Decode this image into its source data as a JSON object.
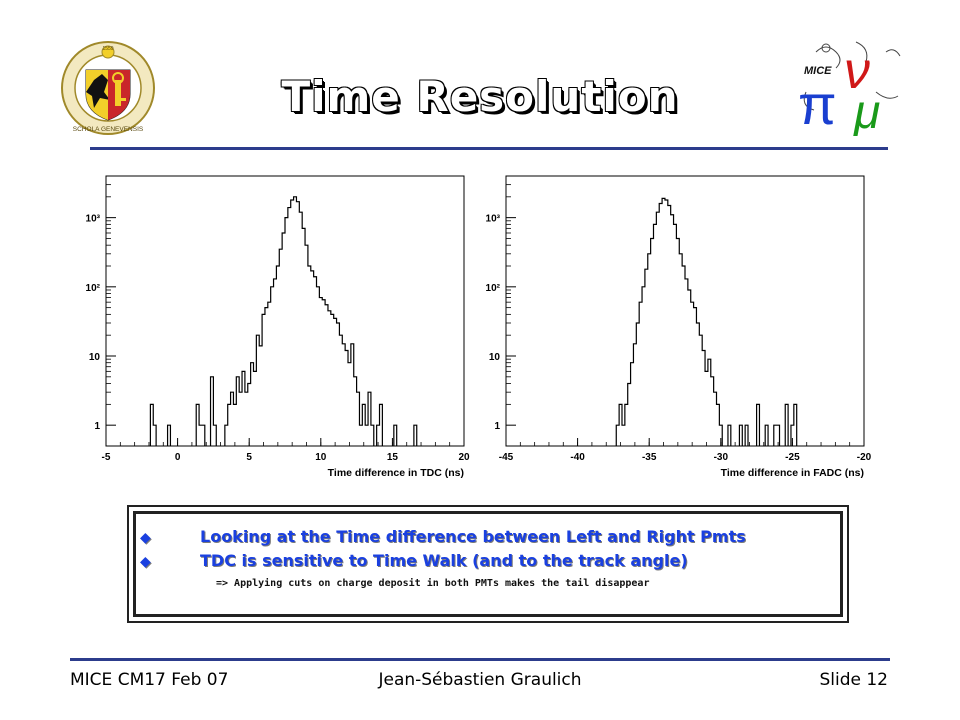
{
  "slide": {
    "title": "Time Resolution",
    "bullets": [
      "Looking at the Time difference between Left and Right Pmts",
      "TDC is sensitive to Time Walk (and to the track angle)"
    ],
    "sub_bullet": "=> Applying cuts on charge deposit in both PMTs makes the tail disappear",
    "footer": {
      "left": "MICE CM17 Feb 07",
      "center": "Jean-Sébastien Graulich",
      "right": "Slide 12"
    },
    "logo_left": {
      "name": "university-of-geneva-seal-logo",
      "text": "POST TENEBRAS LUX · SCHOLA GENEVENSIS · 1559"
    },
    "logo_right": {
      "name": "mice-pi-mu-nu-logo",
      "text": "MICE"
    },
    "colors": {
      "title": "#ffffff",
      "bullets": "#1a40e0",
      "rule": "#2c3c8c"
    }
  },
  "chart_data": [
    {
      "type": "step-histogram",
      "title": "",
      "xlabel": "Time  difference  in  TDC  (ns)",
      "ylabel": "",
      "xlim": [
        -5,
        20
      ],
      "ylim": [
        0.5,
        4000
      ],
      "yscale": "log",
      "xticks": [
        -5,
        0,
        5,
        10,
        15,
        20
      ],
      "yticks": [
        {
          "v": 1,
          "label": "1"
        },
        {
          "v": 10,
          "label": "10"
        },
        {
          "v": 100,
          "label": "10²"
        },
        {
          "v": 1000,
          "label": "10³"
        }
      ],
      "bin_width": 0.2,
      "x": [
        -1.8,
        -1.6,
        -0.6,
        1.4,
        1.6,
        1.8,
        2.4,
        2.6,
        3.4,
        3.6,
        3.8,
        4.0,
        4.2,
        4.4,
        4.6,
        4.8,
        5.0,
        5.2,
        5.4,
        5.6,
        5.8,
        6.0,
        6.2,
        6.4,
        6.6,
        6.8,
        7.0,
        7.2,
        7.4,
        7.6,
        7.8,
        8.0,
        8.2,
        8.4,
        8.6,
        8.8,
        9.0,
        9.2,
        9.4,
        9.6,
        9.8,
        10.0,
        10.2,
        10.4,
        10.6,
        10.8,
        11.0,
        11.2,
        11.4,
        11.6,
        11.8,
        12.0,
        12.2,
        12.4,
        12.6,
        12.8,
        13.0,
        13.2,
        13.4,
        13.6,
        14.0,
        14.2,
        15.2,
        16.6
      ],
      "y": [
        2,
        1,
        1,
        2,
        1,
        1,
        5,
        1,
        1,
        2,
        3,
        2,
        5,
        3,
        6,
        3,
        4,
        8,
        6,
        20,
        14,
        40,
        50,
        60,
        100,
        130,
        200,
        350,
        600,
        1000,
        1400,
        1800,
        2000,
        1700,
        1200,
        700,
        400,
        200,
        170,
        140,
        100,
        70,
        65,
        55,
        45,
        40,
        35,
        30,
        20,
        15,
        12,
        8,
        15,
        5,
        3,
        1,
        2,
        1,
        3,
        1,
        1,
        2,
        1,
        1
      ]
    },
    {
      "type": "step-histogram",
      "title": "",
      "xlabel": "Time  difference  in  FADC  (ns)",
      "ylabel": "",
      "xlim": [
        -45,
        -20
      ],
      "ylim": [
        0.5,
        4000
      ],
      "yscale": "log",
      "xticks": [
        -45,
        -40,
        -35,
        -30,
        -25,
        -20
      ],
      "yticks": [
        {
          "v": 1,
          "label": "1"
        },
        {
          "v": 10,
          "label": "10"
        },
        {
          "v": 100,
          "label": "10²"
        },
        {
          "v": 1000,
          "label": "10³"
        }
      ],
      "bin_width": 0.2,
      "x": [
        -37.2,
        -37.0,
        -36.8,
        -36.6,
        -36.4,
        -36.2,
        -36.0,
        -35.8,
        -35.6,
        -35.4,
        -35.2,
        -35.0,
        -34.8,
        -34.6,
        -34.4,
        -34.2,
        -34.0,
        -33.8,
        -33.6,
        -33.4,
        -33.2,
        -33.0,
        -32.8,
        -32.6,
        -32.4,
        -32.2,
        -32.0,
        -31.8,
        -31.6,
        -31.4,
        -31.2,
        -31.0,
        -30.8,
        -30.6,
        -30.4,
        -30.2,
        -30.0,
        -29.4,
        -28.6,
        -28.2,
        -27.4,
        -26.8,
        -26.2,
        -26.0,
        -25.4,
        -25.0,
        -24.8
      ],
      "y": [
        1,
        2,
        1,
        2,
        4,
        8,
        15,
        30,
        60,
        100,
        180,
        300,
        500,
        800,
        1200,
        1600,
        1900,
        1800,
        1500,
        1100,
        800,
        500,
        300,
        200,
        130,
        90,
        60,
        50,
        30,
        20,
        12,
        6,
        9,
        5,
        3,
        2,
        1,
        1,
        1,
        1,
        2,
        1,
        1,
        1,
        2,
        1,
        2
      ]
    }
  ]
}
